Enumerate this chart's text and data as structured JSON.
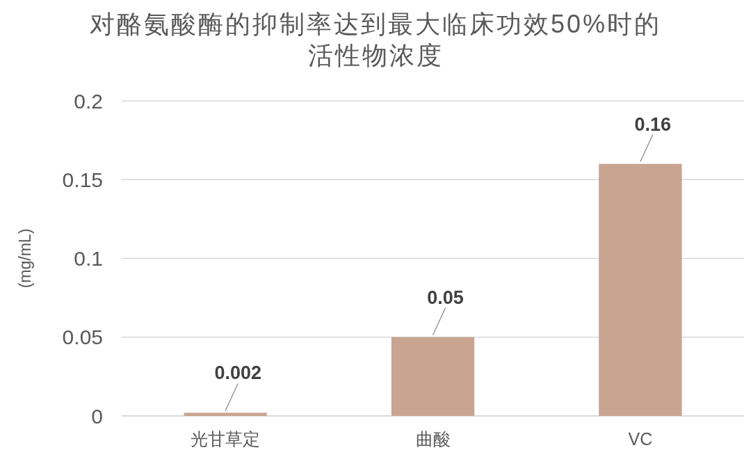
{
  "chart_data": {
    "type": "bar",
    "title": "对酪氨酸酶的抑制率达到最大临床功效50%时的活性物浓度",
    "ylabel": "(mg/mL)",
    "categories": [
      "光甘草定",
      "曲酸",
      "VC"
    ],
    "values": [
      0.002,
      0.05,
      0.16
    ],
    "color": "#c8a491",
    "ylim": [
      0,
      0.2
    ],
    "yticks": [
      0,
      0.05,
      0.1,
      0.15,
      0.2
    ],
    "grid": "y",
    "data_labels": true
  }
}
